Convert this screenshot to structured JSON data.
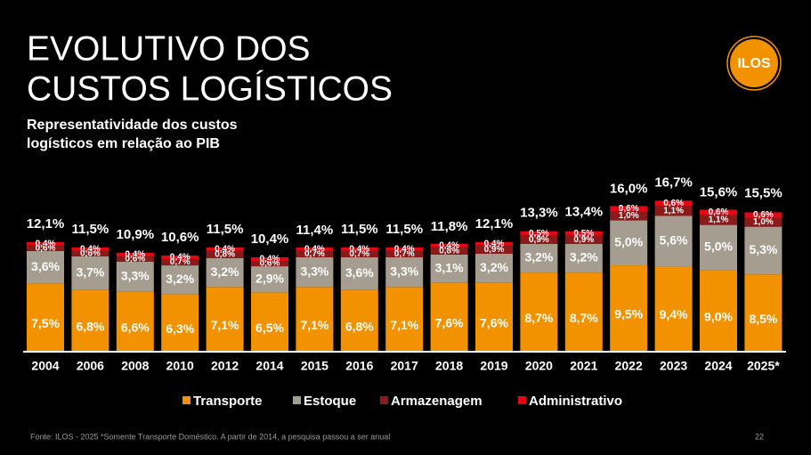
{
  "title_lines": [
    "EVOLUTIVO DOS",
    "CUSTOS LOGÍSTICOS"
  ],
  "logo": "ILOS",
  "source": "Fonte: ILOS - 2025 *Somente Transporte Doméstico. A partir de 2014, a pesquisa passou a ser anual",
  "page_number": "22",
  "chart_data": {
    "type": "stacked_bar",
    "subtitle_lines": [
      "Representatividade dos custos",
      "logísticos em relação ao PIB"
    ],
    "categories": [
      "2004",
      "2006",
      "2008",
      "2010",
      "2012",
      "2014",
      "2015",
      "2016",
      "2017",
      "2018",
      "2019",
      "2020",
      "2021",
      "2022",
      "2023",
      "2024",
      "2025*"
    ],
    "series": [
      {
        "name": "Transporte",
        "color": "#f39200",
        "values": [
          7.5,
          6.8,
          6.6,
          6.3,
          7.1,
          6.5,
          7.1,
          6.8,
          7.1,
          7.6,
          7.6,
          8.7,
          8.7,
          9.5,
          9.4,
          9.0,
          8.5
        ],
        "value_labels": [
          "7,5%",
          "6,8%",
          "6,6%",
          "6,3%",
          "7,1%",
          "6,5%",
          "7,1%",
          "6,8%",
          "7,1%",
          "7,6%",
          "7,6%",
          "8,7%",
          "8,7%",
          "9,5%",
          "9,4%",
          "9,0%",
          "8,5%"
        ]
      },
      {
        "name": "Estoque",
        "color": "#a59d8f",
        "values": [
          3.6,
          3.7,
          3.3,
          3.2,
          3.2,
          2.9,
          3.3,
          3.6,
          3.3,
          3.1,
          3.2,
          3.2,
          3.2,
          5.0,
          5.6,
          5.0,
          5.3
        ],
        "value_labels": [
          "3,6%",
          "3,7%",
          "3,3%",
          "3,2%",
          "3,2%",
          "2,9%",
          "3,3%",
          "3,6%",
          "3,3%",
          "3,1%",
          "3,2%",
          "3,2%",
          "3,2%",
          "5,0%",
          "5,6%",
          "5,0%",
          "5,3%"
        ]
      },
      {
        "name": "Armazenagem",
        "color": "#8b1a1a",
        "values": [
          0.6,
          0.6,
          0.6,
          0.7,
          0.8,
          0.6,
          0.7,
          0.7,
          0.7,
          0.8,
          0.9,
          0.9,
          0.9,
          1.0,
          1.1,
          1.1,
          1.0
        ],
        "value_labels": [
          "0,6%",
          "0,6%",
          "0,6%",
          "0,7%",
          "0,8%",
          "0,6%",
          "0,7%",
          "0,7%",
          "0,7%",
          "0,8%",
          "0,9%",
          "0,9%",
          "0,9%",
          "1,0%",
          "1,1%",
          "1,1%",
          "1,0%"
        ]
      },
      {
        "name": "Administrativo",
        "color": "#e30613",
        "values": [
          0.4,
          0.4,
          0.4,
          0.4,
          0.4,
          0.4,
          0.4,
          0.4,
          0.4,
          0.4,
          0.4,
          0.5,
          0.5,
          0.6,
          0.6,
          0.6,
          0.6
        ],
        "value_labels": [
          "0,4%",
          "0,4%",
          "0,4%",
          "0,4%",
          "0,4%",
          "0,4%",
          "0,4%",
          "0,4%",
          "0,4%",
          "0,4%",
          "0,4%",
          "0,5%",
          "0,5%",
          "0,6%",
          "0,6%",
          "0,6%",
          "0,6%"
        ]
      }
    ],
    "totals": {
      "values": [
        12.1,
        11.5,
        10.9,
        10.6,
        11.5,
        10.4,
        11.4,
        11.5,
        11.5,
        11.8,
        12.1,
        13.3,
        13.4,
        16.0,
        16.7,
        15.6,
        15.5
      ],
      "value_labels": [
        "12,1%",
        "11,5%",
        "10,9%",
        "10,6%",
        "11,5%",
        "10,4%",
        "11,4%",
        "11,5%",
        "11,5%",
        "11,8%",
        "12,1%",
        "13,3%",
        "13,4%",
        "16,0%",
        "16,7%",
        "15,6%",
        "15,5%"
      ]
    }
  }
}
